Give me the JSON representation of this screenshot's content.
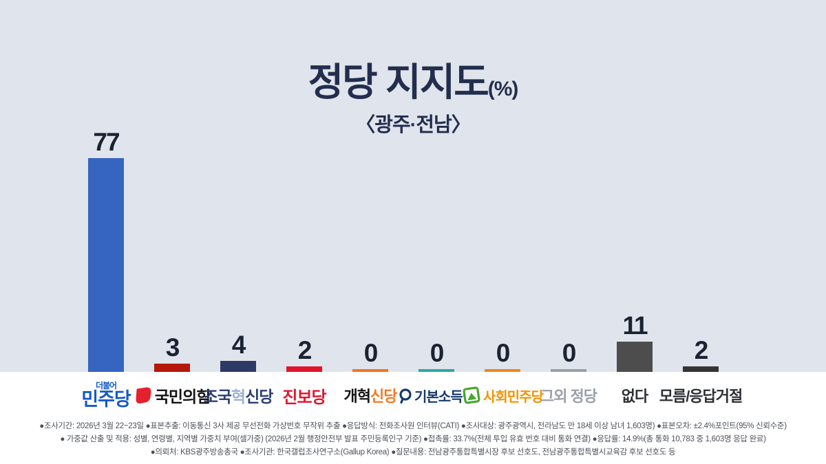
{
  "header": {
    "title_main": "정당 지지도",
    "title_unit": "(%)",
    "subtitle": "〈광주·전남〉"
  },
  "chart_data": {
    "type": "bar",
    "title": "정당 지지도(%)",
    "subtitle": "〈광주·전남〉",
    "categories": [
      "더불어민주당",
      "국민의힘",
      "조국혁신당",
      "진보당",
      "개혁신당",
      "기본소득당",
      "사회민주당",
      "그외 정당",
      "없다",
      "모름/응답거절"
    ],
    "values": [
      77,
      3,
      4,
      2,
      0,
      0,
      0,
      0,
      11,
      2
    ],
    "ylabel": "지지도(%)",
    "ylim": [
      0,
      100
    ],
    "grid": false,
    "legend_position": "none"
  },
  "parties": [
    {
      "id": "minjoo",
      "bar_color": "#3565c1",
      "top_text": "더불어",
      "segments": [
        {
          "text": "민주당",
          "color": "#1459c7",
          "size": 27
        }
      ]
    },
    {
      "id": "ppp",
      "bar_color": "#b5170b",
      "icon": "ppp-icon",
      "segments": [
        {
          "text": "국민의힘",
          "color": "#141414",
          "size": 23
        }
      ]
    },
    {
      "id": "chokuk",
      "bar_color": "#2d3a66",
      "segments": [
        {
          "text": "조국",
          "color": "#2b3f72",
          "size": 23
        },
        {
          "text": "혁",
          "color": "#9db1d4",
          "size": 23
        },
        {
          "text": "신당",
          "color": "#2b3f72",
          "size": 23
        }
      ]
    },
    {
      "id": "jinbo",
      "bar_color": "#e0142b",
      "segments": [
        {
          "text": "진보당",
          "color": "#e01731",
          "size": 24
        }
      ]
    },
    {
      "id": "reform",
      "bar_color": "#f4731f",
      "segments": [
        {
          "text": "개혁",
          "color": "#141414",
          "size": 22
        },
        {
          "text": "신당",
          "color": "#f47a20",
          "size": 22
        }
      ]
    },
    {
      "id": "basicincome",
      "bar_color": "#2ca8a4",
      "icon": "bip-icon",
      "segments": [
        {
          "text": "기본소득당",
          "color": "#15386b",
          "size": 20
        }
      ]
    },
    {
      "id": "socialdem",
      "bar_color": "#f0861c",
      "icon": "sdp-icon",
      "segments": [
        {
          "text": "사회민주당",
          "color": "#f29200",
          "size": 20
        }
      ]
    },
    {
      "id": "other",
      "bar_color": "#9c9ea1",
      "segments": [
        {
          "text": "그외 정당",
          "color": "#9aa0a8",
          "size": 22
        }
      ]
    },
    {
      "id": "none",
      "bar_color": "#4d4d4d",
      "segments": [
        {
          "text": "없다",
          "color": "#2d2f33",
          "size": 22
        }
      ]
    },
    {
      "id": "dontknow",
      "bar_color": "#343434",
      "segments": [
        {
          "text": "모름/응답거절",
          "color": "#2d2f33",
          "size": 22
        }
      ]
    }
  ],
  "footer": {
    "lines": [
      "●조사기간: 2026년 3월 22~23일  ●표본추출: 이동통신 3사 제공 무선전화 가상번호 무작위 추출  ●응답방식: 전화조사원 인터뷰(CATI)  ●조사대상: 광주광역시, 전라남도 만 18세 이상 남녀 1,603명)  ●표본오차: ±2.4%포인트(95% 신뢰수준)",
      "● 가중값 산출 및 적용: 성별, 연령별, 지역별 가중치 부여(셀가중) (2026년 2월 행정안전부 발표 주민등록인구 기준)  ●접촉률: 33.7%(전체 투입 유효 번호 대비 통화 연결)  ●응답률: 14.9%(총 통화 10,783 중 1,603명 응답 완료)",
      "●의뢰처: KBS광주방송총국  ●조사기관: 한국갤럽조사연구소(Gallup Korea)  ●질문내용: 전남광주통합특별시장 후보 선호도, 전남광주통합특별시교육감 후보 선호도 등"
    ]
  }
}
